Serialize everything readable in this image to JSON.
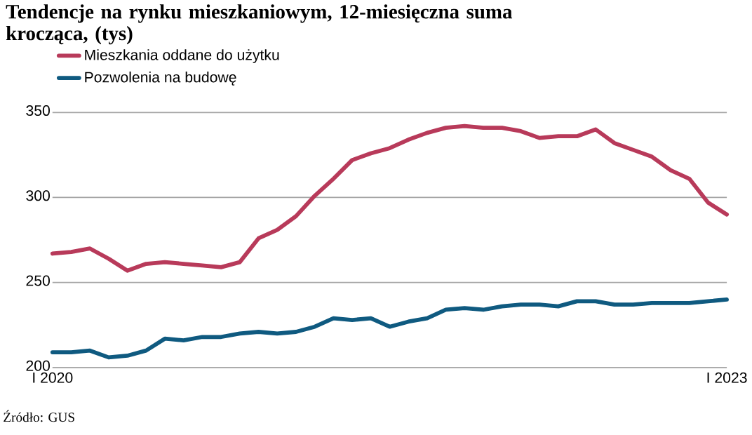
{
  "chart_data": {
    "type": "line",
    "title": "Tendencje na rynku mieszkaniowym, 12-miesięczna suma krocząca, (tys)",
    "categories": [
      "I 2020",
      null,
      null,
      null,
      null,
      null,
      null,
      null,
      null,
      null,
      null,
      null,
      null,
      null,
      null,
      null,
      null,
      null,
      null,
      null,
      null,
      null,
      null,
      null,
      null,
      null,
      null,
      null,
      null,
      null,
      null,
      null,
      null,
      null,
      null,
      null,
      "I 2023"
    ],
    "series": [
      {
        "name": "Mieszkania oddane do użytku",
        "color": "#b83a5a",
        "values": [
          267,
          268,
          270,
          264,
          257,
          261,
          262,
          261,
          260,
          259,
          262,
          276,
          281,
          289,
          301,
          311,
          322,
          326,
          329,
          334,
          338,
          341,
          342,
          341,
          341,
          339,
          335,
          336,
          336,
          340,
          332,
          328,
          324,
          316,
          311,
          297,
          290
        ]
      },
      {
        "name": "Pozwolenia na budowę",
        "color": "#0f5a80",
        "values": [
          209,
          209,
          210,
          206,
          207,
          210,
          217,
          216,
          218,
          218,
          220,
          221,
          220,
          221,
          224,
          229,
          228,
          229,
          224,
          227,
          229,
          234,
          235,
          234,
          236,
          237,
          237,
          236,
          239,
          239,
          237,
          237,
          238,
          238,
          238,
          239,
          240
        ]
      }
    ],
    "ylim": [
      200,
      350
    ],
    "yticks": [
      200,
      250,
      300,
      350
    ],
    "grid": "y",
    "legend": "top left",
    "marker": "none",
    "line_style": "solid",
    "annotations": [
      "Źródło: GUS"
    ]
  }
}
